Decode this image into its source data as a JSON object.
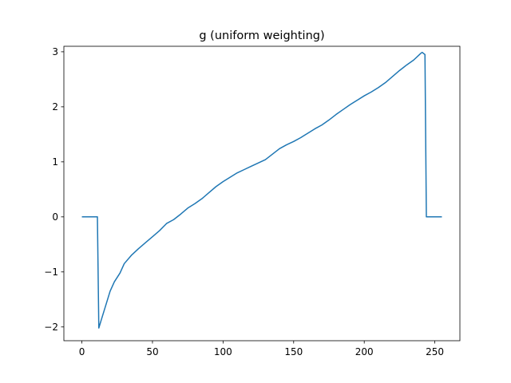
{
  "chart_data": {
    "type": "line",
    "title": "g (uniform weighting)",
    "xlabel": "",
    "ylabel": "",
    "xlim": [
      -12.75,
      267.75
    ],
    "ylim": [
      -2.25,
      3.1
    ],
    "x_ticks": [
      0,
      50,
      100,
      150,
      200,
      250
    ],
    "x_tick_labels": [
      "0",
      "50",
      "100",
      "150",
      "200",
      "250"
    ],
    "y_ticks": [
      -2,
      -1,
      0,
      1,
      2,
      3
    ],
    "y_tick_labels": [
      "−2",
      "−1",
      "0",
      "1",
      "2",
      "3"
    ],
    "grid": false,
    "series": [
      {
        "color": "#1f77b4",
        "x": [
          0,
          5,
          11,
          12,
          14,
          17,
          20,
          23,
          27,
          30,
          35,
          40,
          45,
          50,
          55,
          60,
          65,
          70,
          75,
          80,
          85,
          90,
          95,
          100,
          105,
          110,
          115,
          120,
          125,
          130,
          135,
          140,
          145,
          150,
          155,
          160,
          165,
          170,
          175,
          180,
          185,
          190,
          195,
          200,
          205,
          210,
          215,
          220,
          225,
          230,
          235,
          240,
          241,
          243,
          244,
          250,
          255
        ],
        "y": [
          0,
          0,
          0,
          -2.02,
          -1.85,
          -1.6,
          -1.35,
          -1.18,
          -1.02,
          -0.85,
          -0.7,
          -0.58,
          -0.47,
          -0.36,
          -0.25,
          -0.12,
          -0.05,
          0.05,
          0.16,
          0.24,
          0.33,
          0.44,
          0.55,
          0.64,
          0.72,
          0.8,
          0.86,
          0.92,
          0.98,
          1.04,
          1.14,
          1.24,
          1.31,
          1.37,
          1.44,
          1.52,
          1.6,
          1.67,
          1.76,
          1.86,
          1.95,
          2.04,
          2.12,
          2.2,
          2.27,
          2.35,
          2.44,
          2.55,
          2.66,
          2.76,
          2.85,
          2.97,
          2.99,
          2.95,
          0,
          0,
          0
        ]
      }
    ]
  }
}
